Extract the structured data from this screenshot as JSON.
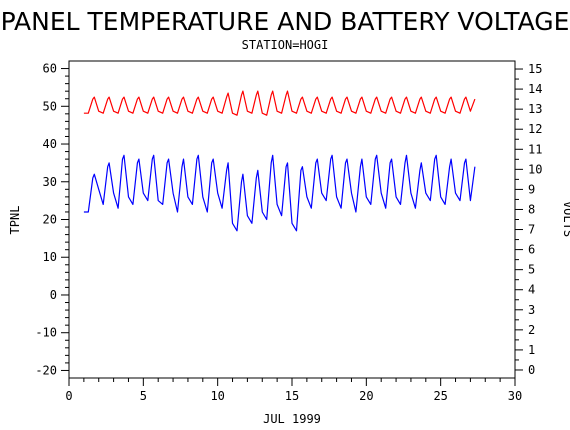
{
  "chart_data": {
    "type": "line",
    "title": "PANEL TEMPERATURE AND BATTERY VOLTAGE",
    "subtitle": "STATION=HOGI",
    "xlabel": "JUL 1999",
    "ylabel_left": "TPNL",
    "ylabel_right": "VOLTS",
    "xlim": [
      0,
      30
    ],
    "ylim_left": [
      -22,
      62
    ],
    "ylim_right": [
      -0.4,
      15.4
    ],
    "x_ticks": [
      "0",
      "5",
      "10",
      "15",
      "20",
      "25",
      "30"
    ],
    "y_ticks_left": [
      "-20",
      "-10",
      "0",
      "10",
      "20",
      "30",
      "40",
      "50",
      "60"
    ],
    "y_ticks_right": [
      "0",
      "1",
      "2",
      "3",
      "4",
      "5",
      "6",
      "7",
      "8",
      "9",
      "10",
      "11",
      "12",
      "13",
      "14",
      "15"
    ],
    "grid": false,
    "series": [
      {
        "axis": "left",
        "color": "#0000ff",
        "x": [
          1.0,
          1.3,
          1.6,
          1.7,
          2.0,
          2.3,
          2.6,
          2.7,
          3.0,
          3.3,
          3.6,
          3.7,
          4.0,
          4.3,
          4.6,
          4.7,
          5.0,
          5.3,
          5.6,
          5.7,
          6.0,
          6.3,
          6.6,
          6.7,
          7.0,
          7.3,
          7.6,
          7.7,
          8.0,
          8.3,
          8.6,
          8.7,
          9.0,
          9.3,
          9.6,
          9.7,
          10.0,
          10.3,
          10.6,
          10.7,
          11.0,
          11.3,
          11.6,
          11.7,
          12.0,
          12.3,
          12.6,
          12.7,
          13.0,
          13.3,
          13.6,
          13.7,
          14.0,
          14.3,
          14.6,
          14.7,
          15.0,
          15.3,
          15.6,
          15.7,
          16.0,
          16.3,
          16.6,
          16.7,
          17.0,
          17.3,
          17.6,
          17.7,
          18.0,
          18.3,
          18.6,
          18.7,
          19.0,
          19.3,
          19.6,
          19.7,
          20.0,
          20.3,
          20.6,
          20.7,
          21.0,
          21.3,
          21.6,
          21.7,
          22.0,
          22.3,
          22.6,
          22.7,
          23.0,
          23.3,
          23.6,
          23.7,
          24.0,
          24.3,
          24.6,
          24.7,
          25.0,
          25.3,
          25.6,
          25.7,
          26.0,
          26.3,
          26.6,
          26.7,
          27.0,
          27.3
        ],
        "values": [
          22,
          22,
          31,
          32,
          28,
          24,
          34,
          35,
          27,
          23,
          36,
          37,
          26,
          24,
          35,
          36,
          27,
          25,
          36,
          37,
          25,
          24,
          35,
          36,
          27,
          22,
          34,
          36,
          26,
          24,
          36,
          37,
          26,
          22,
          35,
          36,
          27,
          23,
          33,
          35,
          19,
          17,
          30,
          32,
          21,
          19,
          31,
          33,
          22,
          20,
          35,
          37,
          24,
          21,
          34,
          35,
          19,
          17,
          33,
          34,
          26,
          23,
          35,
          36,
          27,
          25,
          36,
          37,
          26,
          23,
          35,
          36,
          27,
          22,
          34,
          36,
          26,
          24,
          36,
          37,
          27,
          23,
          35,
          36,
          26,
          24,
          35,
          37,
          27,
          23,
          33,
          35,
          27,
          25,
          36,
          37,
          26,
          24,
          34,
          36,
          27,
          25,
          35,
          36,
          25,
          34
        ]
      },
      {
        "axis": "right",
        "color": "#ff0000",
        "x": [
          1.0,
          1.3,
          1.6,
          1.7,
          2.0,
          2.3,
          2.6,
          2.7,
          3.0,
          3.3,
          3.6,
          3.7,
          4.0,
          4.3,
          4.6,
          4.7,
          5.0,
          5.3,
          5.6,
          5.7,
          6.0,
          6.3,
          6.6,
          6.7,
          7.0,
          7.3,
          7.6,
          7.7,
          8.0,
          8.3,
          8.6,
          8.7,
          9.0,
          9.3,
          9.6,
          9.7,
          10.0,
          10.3,
          10.6,
          10.7,
          11.0,
          11.3,
          11.6,
          11.7,
          12.0,
          12.3,
          12.6,
          12.7,
          13.0,
          13.3,
          13.6,
          13.7,
          14.0,
          14.3,
          14.6,
          14.7,
          15.0,
          15.3,
          15.6,
          15.7,
          16.0,
          16.3,
          16.6,
          16.7,
          17.0,
          17.3,
          17.6,
          17.7,
          18.0,
          18.3,
          18.6,
          18.7,
          19.0,
          19.3,
          19.6,
          19.7,
          20.0,
          20.3,
          20.6,
          20.7,
          21.0,
          21.3,
          21.6,
          21.7,
          22.0,
          22.3,
          22.6,
          22.7,
          23.0,
          23.3,
          23.6,
          23.7,
          24.0,
          24.3,
          24.6,
          24.7,
          25.0,
          25.3,
          25.6,
          25.7,
          26.0,
          26.3,
          26.6,
          26.7,
          27.0,
          27.3
        ],
        "values": [
          12.8,
          12.8,
          13.5,
          13.6,
          12.9,
          12.8,
          13.5,
          13.6,
          12.9,
          12.8,
          13.5,
          13.6,
          12.9,
          12.8,
          13.5,
          13.6,
          12.9,
          12.8,
          13.5,
          13.6,
          12.9,
          12.8,
          13.5,
          13.6,
          12.9,
          12.8,
          13.5,
          13.6,
          12.9,
          12.8,
          13.5,
          13.6,
          12.9,
          12.8,
          13.5,
          13.6,
          12.9,
          12.8,
          13.6,
          13.8,
          12.8,
          12.7,
          13.7,
          13.9,
          12.9,
          12.8,
          13.7,
          13.9,
          12.8,
          12.7,
          13.7,
          13.9,
          12.9,
          12.8,
          13.7,
          13.9,
          12.9,
          12.8,
          13.5,
          13.6,
          12.9,
          12.8,
          13.5,
          13.6,
          12.9,
          12.8,
          13.5,
          13.6,
          12.9,
          12.8,
          13.5,
          13.6,
          12.9,
          12.8,
          13.5,
          13.6,
          12.9,
          12.8,
          13.5,
          13.6,
          12.9,
          12.8,
          13.5,
          13.6,
          12.9,
          12.8,
          13.5,
          13.6,
          12.9,
          12.8,
          13.5,
          13.6,
          12.9,
          12.8,
          13.5,
          13.6,
          12.9,
          12.8,
          13.5,
          13.6,
          12.9,
          12.8,
          13.5,
          13.6,
          12.9,
          13.5
        ]
      }
    ]
  }
}
